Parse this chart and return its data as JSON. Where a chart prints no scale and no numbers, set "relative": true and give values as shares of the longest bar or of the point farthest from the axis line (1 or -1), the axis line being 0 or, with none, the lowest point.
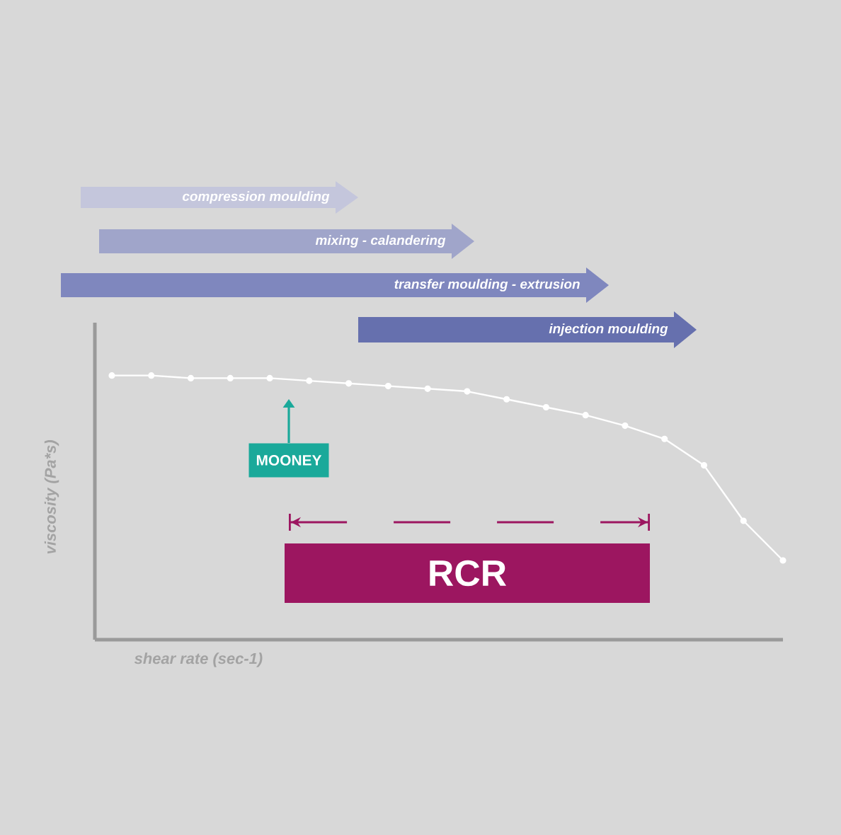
{
  "chart_data": {
    "type": "line",
    "relative": true,
    "xlabel": "shear rate (sec-1)",
    "ylabel": "viscosity (Pa*s)",
    "marker": "circle",
    "line_style": "solid",
    "categories": [
      null,
      null,
      null,
      null,
      null,
      null,
      null,
      null,
      null,
      null,
      null,
      null,
      null,
      null,
      null,
      null,
      null,
      null
    ],
    "series": [
      {
        "color": "#ffffff",
        "values": [
          1.0,
          1.0,
          0.99,
          0.99,
          0.99,
          0.98,
          0.97,
          0.96,
          0.95,
          0.94,
          0.91,
          0.88,
          0.85,
          0.81,
          0.76,
          0.66,
          0.45,
          0.3
        ]
      }
    ],
    "annotations": [
      "compression moulding",
      "mixing - calandering",
      "transfer moulding - extrusion",
      "injection moulding",
      "MOONEY",
      "RCR"
    ]
  }
}
